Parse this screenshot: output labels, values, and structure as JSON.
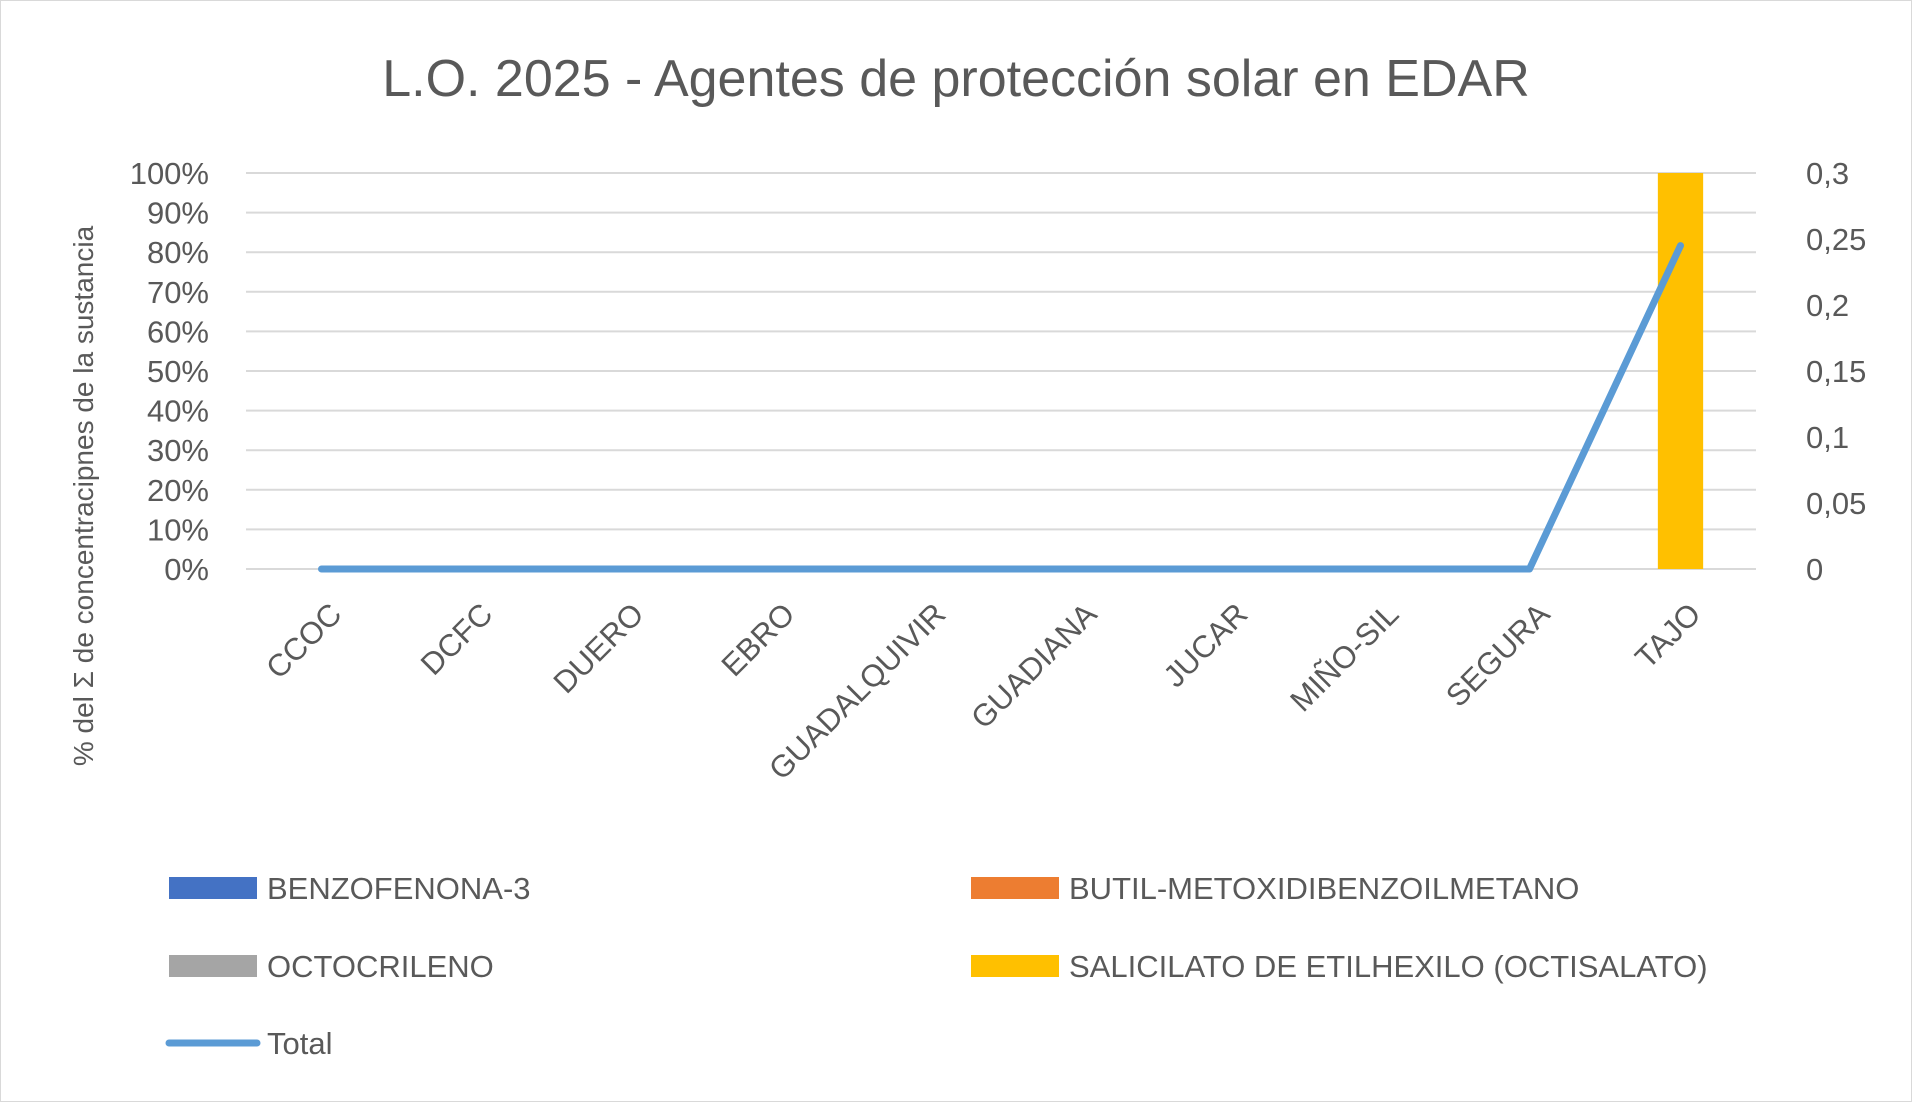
{
  "chart_data": {
    "type": "bar",
    "title": "L.O. 2025 - Agentes de protección solar en EDAR",
    "ylabel": "% del Σ de concentracipnes de la sustancia",
    "xlabel": "",
    "categories": [
      "CCOC",
      "DCFC",
      "DUERO",
      "EBRO",
      "GUADALQUIVIR",
      "GUADIANA",
      "JUCAR",
      "MIÑO-SIL",
      "SEGURA",
      "TAJO"
    ],
    "stacked_percent": true,
    "ylim": [
      0,
      100
    ],
    "y_ticks": [
      "0%",
      "10%",
      "20%",
      "30%",
      "40%",
      "50%",
      "60%",
      "70%",
      "80%",
      "90%",
      "100%"
    ],
    "y2lim": [
      0,
      0.3
    ],
    "y2_ticks": [
      "0",
      "0,05",
      "0,1",
      "0,15",
      "0,2",
      "0,25",
      "0,3"
    ],
    "grid": true,
    "legend_position": "bottom",
    "series": [
      {
        "name": "BENZOFENONA-3",
        "kind": "bar",
        "color": "#4472C4",
        "values": [
          0,
          0,
          0,
          0,
          0,
          0,
          0,
          0,
          0,
          0
        ]
      },
      {
        "name": "BUTIL-METOXIDIBENZOILMETANO",
        "kind": "bar",
        "color": "#ED7D31",
        "values": [
          0,
          0,
          0,
          0,
          0,
          0,
          0,
          0,
          0,
          0
        ]
      },
      {
        "name": "OCTOCRILENO",
        "kind": "bar",
        "color": "#A5A5A5",
        "values": [
          0,
          0,
          0,
          0,
          0,
          0,
          0,
          0,
          0,
          0
        ]
      },
      {
        "name": "SALICILATO DE ETILHEXILO (OCTISALATO)",
        "kind": "bar",
        "color": "#FFC000",
        "values": [
          0,
          0,
          0,
          0,
          0,
          0,
          0,
          0,
          0,
          100
        ]
      },
      {
        "name": "Total",
        "kind": "line",
        "axis": "secondary",
        "color": "#5B9BD5",
        "values": [
          0,
          0,
          0,
          0,
          0,
          0,
          0,
          0,
          0,
          0.245
        ]
      }
    ]
  }
}
